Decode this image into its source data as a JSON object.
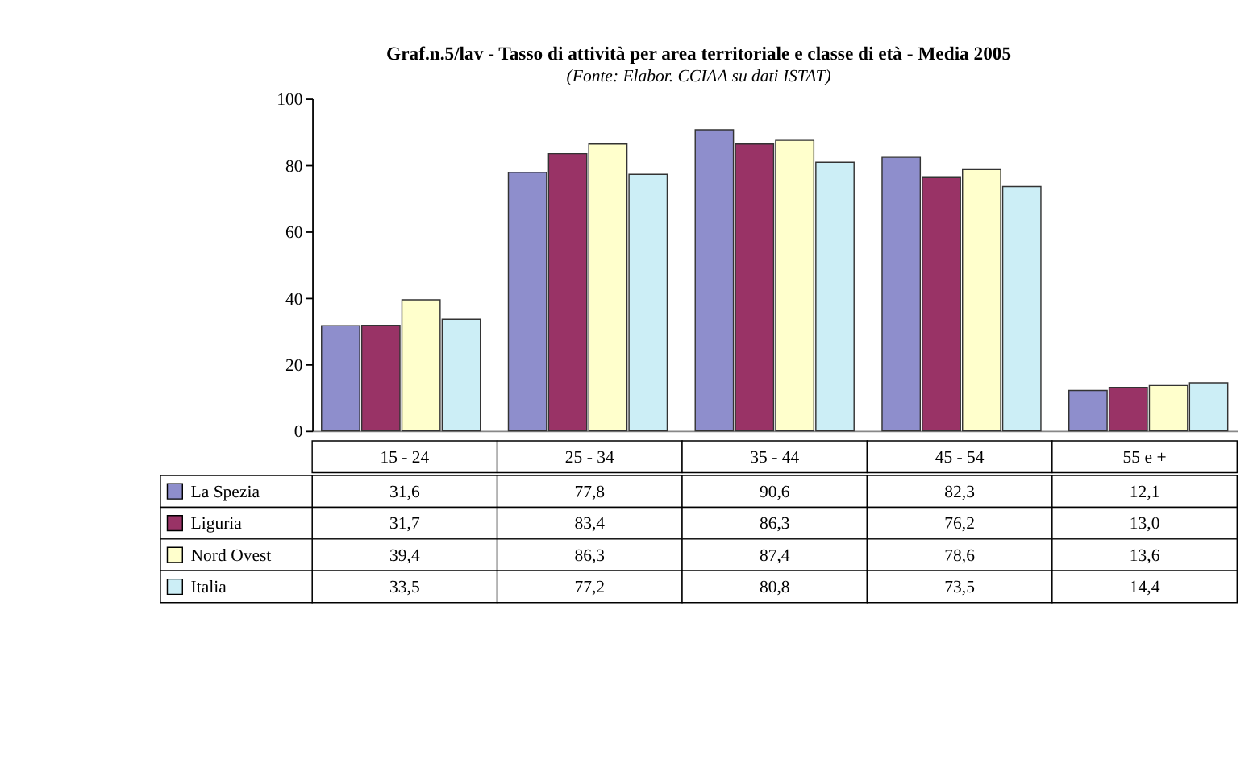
{
  "chart_data": {
    "type": "bar",
    "title": "Graf.n.5/lav - Tasso di attività per area territoriale e classe di età - Media 2005",
    "subtitle": "(Fonte: Elabor. CCIAA su dati ISTAT)",
    "categories": [
      "15 - 24",
      "25 - 34",
      "35 - 44",
      "45 - 54",
      "55  e +"
    ],
    "series": [
      {
        "name": "La Spezia",
        "color": "#8e8ecc",
        "values": [
          31.6,
          77.8,
          90.6,
          82.3,
          12.1
        ],
        "value_labels": [
          "31,6",
          "77,8",
          "90,6",
          "82,3",
          "12,1"
        ]
      },
      {
        "name": "Liguria",
        "color": "#993366",
        "values": [
          31.7,
          83.4,
          86.3,
          76.2,
          13.0
        ],
        "value_labels": [
          "31,7",
          "83,4",
          "86,3",
          "76,2",
          "13,0"
        ]
      },
      {
        "name": "Nord Ovest",
        "color": "#ffffcc",
        "values": [
          39.4,
          86.3,
          87.4,
          78.6,
          13.6
        ],
        "value_labels": [
          "39,4",
          "86,3",
          "87,4",
          "78,6",
          "13,6"
        ]
      },
      {
        "name": "Italia",
        "color": "#cceef6",
        "values": [
          33.5,
          77.2,
          80.8,
          73.5,
          14.4
        ],
        "value_labels": [
          "33,5",
          "77,2",
          "80,8",
          "73,5",
          "14,4"
        ]
      }
    ],
    "ylim": [
      0,
      100
    ],
    "yticks": [
      0,
      20,
      40,
      60,
      80,
      100
    ],
    "grid": false,
    "legend": "bottom"
  }
}
